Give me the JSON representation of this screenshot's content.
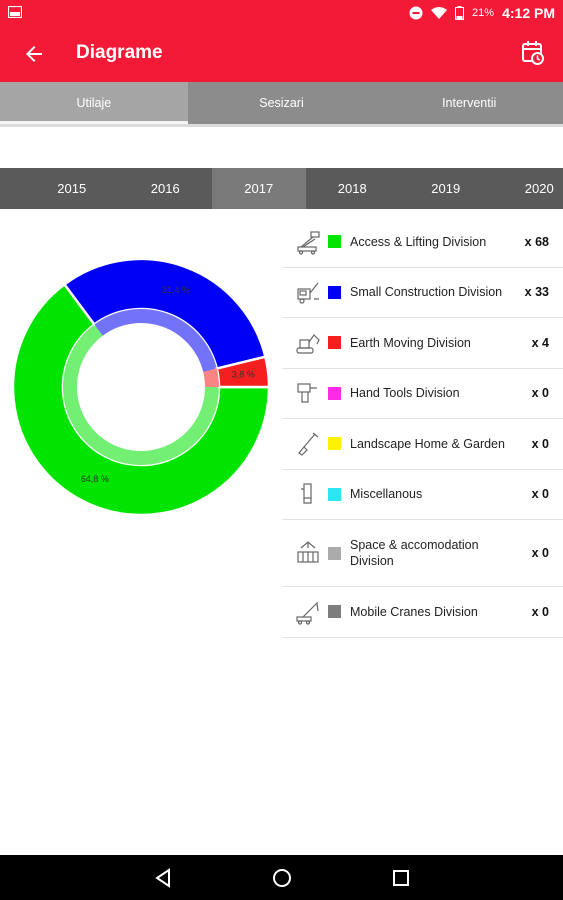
{
  "status_bar": {
    "battery": "21%",
    "time": "4:12 PM"
  },
  "app_bar": {
    "title": "Diagrame",
    "back_icon": "arrow-left-icon",
    "calendar_icon": "calendar-clock-icon"
  },
  "tabs": [
    {
      "label": "Utilaje",
      "active": true
    },
    {
      "label": "Sesizari",
      "active": false
    },
    {
      "label": "Interventii",
      "active": false
    }
  ],
  "years": [
    {
      "label": "2015",
      "active": false
    },
    {
      "label": "2016",
      "active": false
    },
    {
      "label": "2017",
      "active": true
    },
    {
      "label": "2018",
      "active": false
    },
    {
      "label": "2019",
      "active": false
    },
    {
      "label": "2020",
      "active": false
    }
  ],
  "legend": [
    {
      "icon": "aerial-lift-icon",
      "name": "Access & Lifting Division",
      "count": "x 68",
      "color": "#00e400"
    },
    {
      "icon": "compactor-icon",
      "name": "Small Construction Division",
      "count": "x 33",
      "color": "#0000f5"
    },
    {
      "icon": "excavator-icon",
      "name": "Earth Moving Division",
      "count": "x 4",
      "color": "#f51f1f"
    },
    {
      "icon": "power-tool-icon",
      "name": "Hand Tools Division",
      "count": "x 0",
      "color": "#ff2ae3"
    },
    {
      "icon": "shovel-icon",
      "name": "Landscape Home & Garden",
      "count": "x 0",
      "color": "#fff200"
    },
    {
      "icon": "misc-tool-icon",
      "name": "Miscellanous",
      "count": "x 0",
      "color": "#2ce6f2"
    },
    {
      "icon": "container-icon",
      "name": "Space & accomodation Division",
      "count": "x 0",
      "color": "#ababab"
    },
    {
      "icon": "crane-icon",
      "name": "Mobile Cranes Division",
      "count": "x 0",
      "color": "#7d7d7d"
    }
  ],
  "chart_data": {
    "type": "pie",
    "donut": true,
    "slices": [
      {
        "label": "Access & Lifting Division",
        "value": 64.8,
        "display": "64,8 %",
        "color": "#00e400"
      },
      {
        "label": "Small Construction Division",
        "value": 31.4,
        "display": "31,4 %",
        "color": "#0000f5"
      },
      {
        "label": "Earth Moving Division",
        "value": 3.8,
        "display": "3,8 %",
        "color": "#f51f1f"
      }
    ]
  }
}
